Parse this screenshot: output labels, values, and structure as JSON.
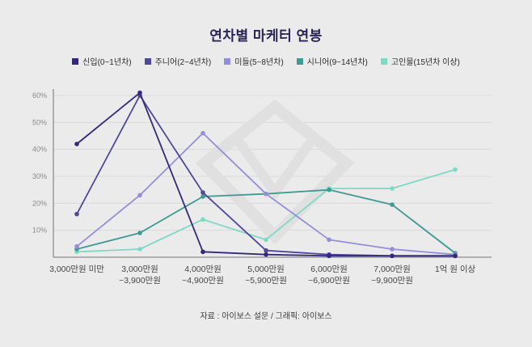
{
  "title": "연차별 마케터 연봉",
  "footer": "자료 : 아이보스 설문 / 그래픽: 아이보스",
  "colors": {
    "background": "#ebebeb",
    "title": "#2a2356",
    "grid": "#d9d9d9",
    "axis": "#8c8c8c",
    "ytick_text": "#8a8a8a",
    "xtick_text": "#454545",
    "watermark": "#e0e0e0"
  },
  "chart_data": {
    "type": "line",
    "title": "연차별 마케터 연봉",
    "xlabel": "",
    "ylabel": "",
    "ylim": [
      0,
      60
    ],
    "grid": true,
    "legend_position": "top",
    "ytick_labels": [
      "10%",
      "20%",
      "30%",
      "40%",
      "50%",
      "60%"
    ],
    "yticks": [
      10,
      20,
      30,
      40,
      50,
      60
    ],
    "categories": [
      "3,000만원 미만",
      "3,000만원 ~3,900만원",
      "4,000만원 ~4,900만원",
      "5,000만원 ~5,900만원",
      "6,000만원 ~6,900만원",
      "7,000만원 ~9,900만원",
      "1억 원 이상"
    ],
    "category_lines": [
      [
        "3,000만원 미만"
      ],
      [
        "3,000만원",
        "~3,900만원"
      ],
      [
        "4,000만원",
        "~4,900만원"
      ],
      [
        "5,000만원",
        "~5,900만원"
      ],
      [
        "6,000만원",
        "~6,900만원"
      ],
      [
        "7,000만원",
        "~9,900만원"
      ],
      [
        "1억 원 이상"
      ]
    ],
    "series": [
      {
        "name": "신입(0~1년차)",
        "color": "#33297a",
        "values": [
          42,
          61,
          2,
          1,
          0.5,
          0.5,
          0.5
        ]
      },
      {
        "name": "주니어(2~4년차)",
        "color": "#4f4899",
        "values": [
          16,
          60,
          24,
          2.5,
          1,
          0.5,
          0.5
        ]
      },
      {
        "name": "미들(5~8년차)",
        "color": "#938fd8",
        "values": [
          4,
          23,
          46,
          23.5,
          6.5,
          3,
          1
        ]
      },
      {
        "name": "시니어(9~14년차)",
        "color": "#3f9a91",
        "values": [
          3,
          9,
          22.5,
          23.5,
          25,
          19.5,
          1.5
        ]
      },
      {
        "name": "고인물(15년차 이상)",
        "color": "#7fd9c4",
        "values": [
          2,
          3,
          14,
          6.5,
          25.5,
          25.5,
          32.5
        ]
      }
    ]
  }
}
